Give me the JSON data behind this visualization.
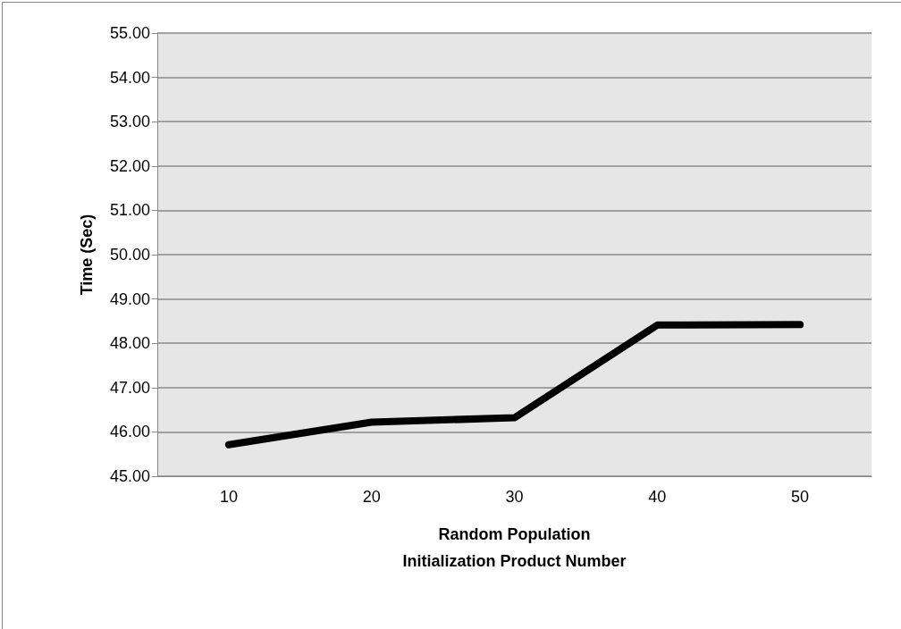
{
  "chart_data": {
    "type": "line",
    "xlabel": "Random Population\nInitialization Product Number",
    "ylabel": "Time (Sec)",
    "categories": [
      "10",
      "20",
      "30",
      "40",
      "50"
    ],
    "series": [
      {
        "color": "#000000",
        "values": [
          45.71,
          46.22,
          46.32,
          48.41,
          48.42
        ]
      }
    ],
    "ylim": [
      45,
      55
    ],
    "yticks": [
      {
        "value": 45,
        "label": "45.00"
      },
      {
        "value": 46,
        "label": "46.00"
      },
      {
        "value": 47,
        "label": "47.00"
      },
      {
        "value": 48,
        "label": "48.00"
      },
      {
        "value": 49,
        "label": "49.00"
      },
      {
        "value": 50,
        "label": "50.00"
      },
      {
        "value": 51,
        "label": "51.00"
      },
      {
        "value": 52,
        "label": "52.00"
      },
      {
        "value": 53,
        "label": "53.00"
      },
      {
        "value": 54,
        "label": "54.00"
      },
      {
        "value": 55,
        "label": "55.00"
      }
    ],
    "grid": "y",
    "marker": "none",
    "line_style": "solid"
  }
}
